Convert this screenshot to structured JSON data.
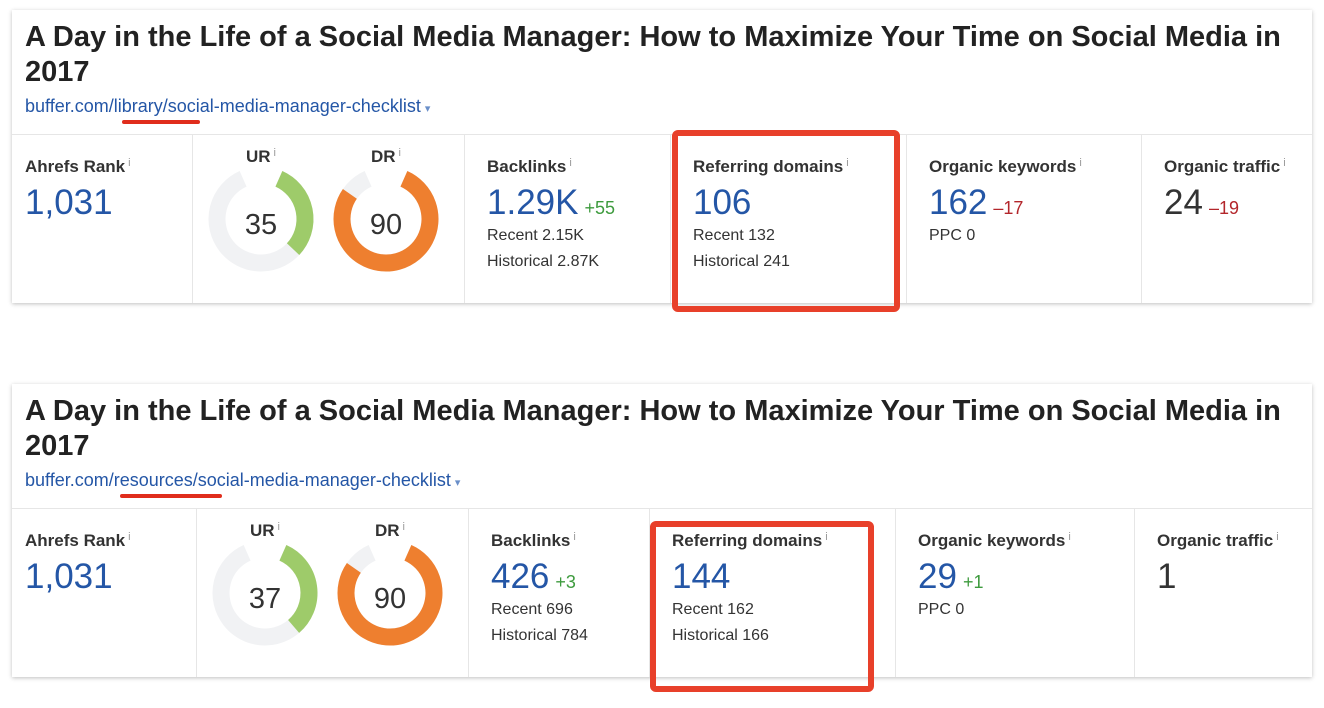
{
  "cards": [
    {
      "title": "A Day in the Life of a Social Media Manager: How to Maximize Your Time on Social Media in 2017",
      "url_prefix": "buffer.com/",
      "url_highlight": "library",
      "url_suffix": "/social-media-manager-checklist",
      "ahrefs_rank_label": "Ahrefs Rank",
      "ahrefs_rank": "1,031",
      "ur_label": "UR",
      "ur": "35",
      "ur_value": 35,
      "dr_label": "DR",
      "dr": "90",
      "dr_value": 90,
      "backlinks_label": "Backlinks",
      "backlinks": "1.29K",
      "backlinks_delta": "+55",
      "backlinks_recent": "Recent 2.15K",
      "backlinks_historical": "Historical 2.87K",
      "rd_label": "Referring domains",
      "rd": "106",
      "rd_delta": "",
      "rd_recent": "Recent 132",
      "rd_historical": "Historical 241",
      "ok_label": "Organic keywords",
      "ok": "162",
      "ok_delta": "–17",
      "ok_ppc": "PPC 0",
      "ot_label": "Organic traffic",
      "ot": "24",
      "ot_delta": "–19"
    },
    {
      "title": "A Day in the Life of a Social Media Manager: How to Maximize Your Time on Social Media in 2017",
      "url_prefix": "buffer.com/",
      "url_highlight": "resources",
      "url_suffix": "/social-media-manager-checklist",
      "ahrefs_rank_label": "Ahrefs Rank",
      "ahrefs_rank": "1,031",
      "ur_label": "UR",
      "ur": "37",
      "ur_value": 37,
      "dr_label": "DR",
      "dr": "90",
      "dr_value": 90,
      "backlinks_label": "Backlinks",
      "backlinks": "426",
      "backlinks_delta": "+3",
      "backlinks_recent": "Recent 696",
      "backlinks_historical": "Historical 784",
      "rd_label": "Referring domains",
      "rd": "144",
      "rd_delta": "",
      "rd_recent": "Recent 162",
      "rd_historical": "Historical 166",
      "ok_label": "Organic keywords",
      "ok": "29",
      "ok_delta": "+1",
      "ok_ppc": "PPC 0",
      "ot_label": "Organic traffic",
      "ot": "1",
      "ot_delta": ""
    }
  ],
  "colors": {
    "ur": "#9ecb6a",
    "dr": "#ee7f2f",
    "track": "#f1f2f4",
    "highlight": "#e8402a"
  },
  "icons": {
    "info": "i",
    "caret": "▾"
  }
}
